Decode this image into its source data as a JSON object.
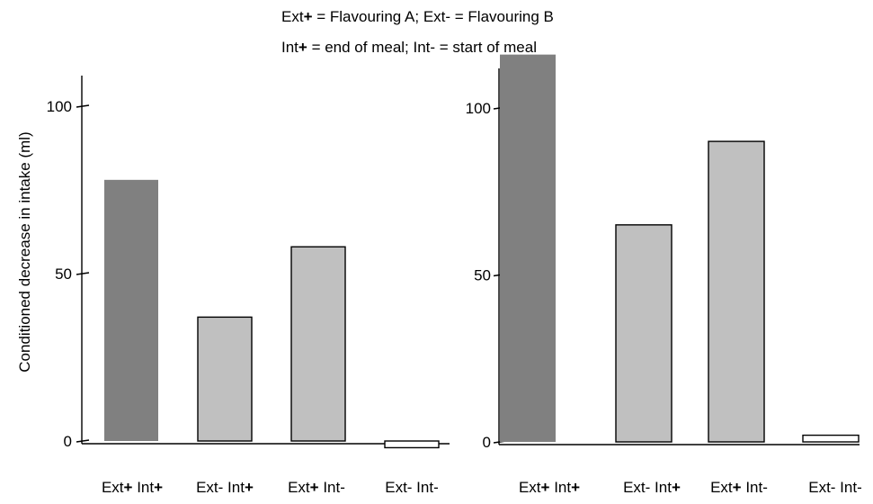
{
  "legend": {
    "line1": "Ext+ = Flavouring A; Ext- = Flavouring B",
    "line2": "Int+ = end of meal; Int- = start of meal"
  },
  "colors": {
    "dark": "#808080",
    "light": "#c0c0c0",
    "white": "#ffffff",
    "stroke": "#000000"
  },
  "chart_data": [
    {
      "type": "bar",
      "title": "",
      "xlabel": "",
      "ylabel": "Conditioned decrease in intake (ml)",
      "ylim": [
        0,
        110
      ],
      "yticks": [
        0,
        50,
        100
      ],
      "categories": [
        "Ext+ Int+",
        "Ext- Int+",
        "Ext+ Int-",
        "Ext- Int-"
      ],
      "values": [
        78,
        37,
        58,
        -2
      ],
      "bar_fills": [
        "dark",
        "light",
        "light",
        "white"
      ],
      "grid": false
    },
    {
      "type": "bar",
      "title": "",
      "xlabel": "",
      "ylabel": "",
      "ylim": [
        0,
        110
      ],
      "yticks": [
        0,
        50,
        100
      ],
      "categories": [
        "Ext+ Int+",
        "Ext- Int+",
        "Ext+ Int-",
        "Ext- Int-"
      ],
      "values": [
        116,
        65,
        90,
        2
      ],
      "bar_fills": [
        "dark",
        "light",
        "light",
        "white"
      ],
      "grid": false
    }
  ]
}
